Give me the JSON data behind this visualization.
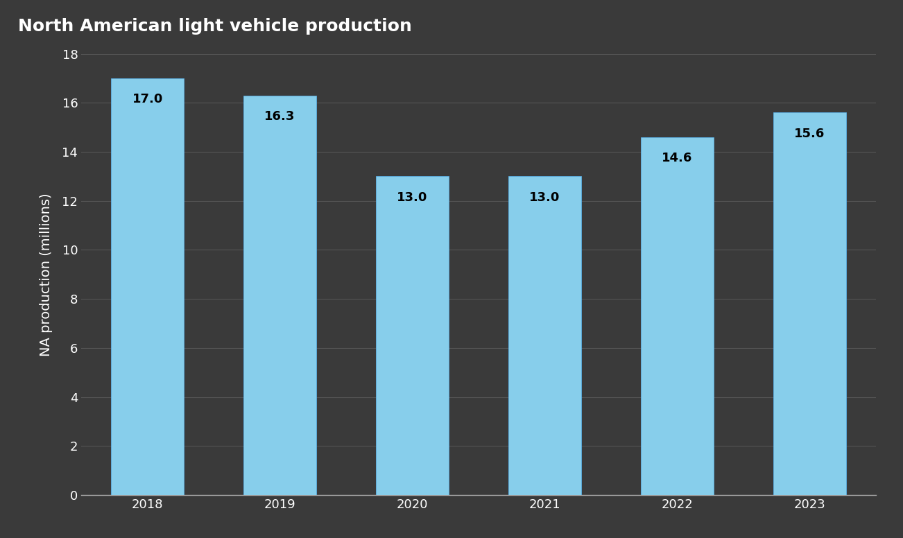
{
  "title": "North American light vehicle production",
  "categories": [
    "2018",
    "2019",
    "2020",
    "2021",
    "2022",
    "2023"
  ],
  "values": [
    17.0,
    16.3,
    13.0,
    13.0,
    14.6,
    15.6
  ],
  "bar_color": "#87CEEB",
  "bar_edge_color": "#5BB8F5",
  "ylabel": "NA production (millions)",
  "ylim": [
    0,
    18
  ],
  "yticks": [
    0,
    2,
    4,
    6,
    8,
    10,
    12,
    14,
    16,
    18
  ],
  "background_color": "#3a3a3a",
  "plot_bg_color": "#3a3a3a",
  "title_bg_color": "#4AABE0",
  "title_text_color": "#ffffff",
  "axis_text_color": "#ffffff",
  "label_text_color": "#000000",
  "grid_color": "#555555",
  "title_fontsize": 18,
  "axis_label_fontsize": 14,
  "tick_fontsize": 13,
  "bar_label_fontsize": 13
}
